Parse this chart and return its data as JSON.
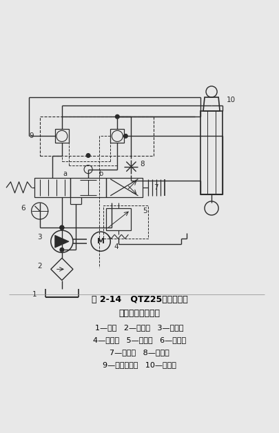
{
  "title_line1": "图 2-14   QTZ25型塔式起重",
  "title_line2": "机顶升液压原理图",
  "legend_line1": "1—油箱   2—过滤器   3—齿轮泵",
  "legend_line2": "4—电动机   5—溢流阀   6—压力表",
  "legend_line3": "7—换向阀   8—节流阀",
  "legend_line4": "9—双向液压锁   10—液压缸",
  "line_color": "#2a2a2a",
  "dashed_color": "#2a2a2a",
  "bg_color": "#e8e8e8"
}
